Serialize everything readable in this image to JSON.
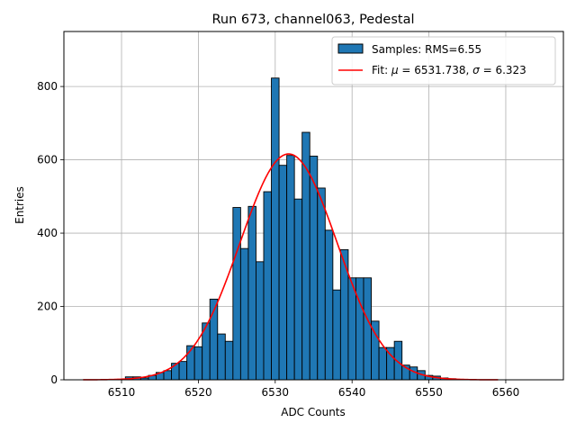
{
  "chart_data": {
    "type": "bar",
    "title": "Run 673, channel063, Pedestal",
    "xlabel": "ADC Counts",
    "ylabel": "Entries",
    "xlim": [
      6502.5,
      6567.5
    ],
    "ylim": [
      0,
      950
    ],
    "xticks": [
      6510,
      6520,
      6530,
      6540,
      6550,
      6560
    ],
    "yticks": [
      0,
      200,
      400,
      600,
      800
    ],
    "grid": true,
    "legend_position": "top-right",
    "bin_width": 1,
    "series": [
      {
        "name": "Samples: RMS=6.55",
        "kind": "histogram",
        "color": "#1f77b4",
        "edge_color": "#000000",
        "bins": [
          {
            "x": 6511,
            "y": 8
          },
          {
            "x": 6512,
            "y": 8
          },
          {
            "x": 6513,
            "y": 5
          },
          {
            "x": 6514,
            "y": 12
          },
          {
            "x": 6515,
            "y": 20
          },
          {
            "x": 6516,
            "y": 25
          },
          {
            "x": 6517,
            "y": 45
          },
          {
            "x": 6518,
            "y": 50
          },
          {
            "x": 6519,
            "y": 93
          },
          {
            "x": 6520,
            "y": 90
          },
          {
            "x": 6521,
            "y": 155
          },
          {
            "x": 6522,
            "y": 220
          },
          {
            "x": 6523,
            "y": 125
          },
          {
            "x": 6524,
            "y": 105
          },
          {
            "x": 6525,
            "y": 470
          },
          {
            "x": 6526,
            "y": 358
          },
          {
            "x": 6527,
            "y": 473
          },
          {
            "x": 6528,
            "y": 322
          },
          {
            "x": 6529,
            "y": 513
          },
          {
            "x": 6530,
            "y": 823
          },
          {
            "x": 6531,
            "y": 585
          },
          {
            "x": 6532,
            "y": 612
          },
          {
            "x": 6533,
            "y": 493
          },
          {
            "x": 6534,
            "y": 675
          },
          {
            "x": 6535,
            "y": 610
          },
          {
            "x": 6536,
            "y": 523
          },
          {
            "x": 6537,
            "y": 408
          },
          {
            "x": 6538,
            "y": 245
          },
          {
            "x": 6539,
            "y": 355
          },
          {
            "x": 6540,
            "y": 278
          },
          {
            "x": 6541,
            "y": 278
          },
          {
            "x": 6542,
            "y": 278
          },
          {
            "x": 6543,
            "y": 160
          },
          {
            "x": 6544,
            "y": 88
          },
          {
            "x": 6545,
            "y": 88
          },
          {
            "x": 6546,
            "y": 105
          },
          {
            "x": 6547,
            "y": 40
          },
          {
            "x": 6548,
            "y": 35
          },
          {
            "x": 6549,
            "y": 25
          },
          {
            "x": 6550,
            "y": 12
          },
          {
            "x": 6551,
            "y": 10
          },
          {
            "x": 6552,
            "y": 5
          },
          {
            "x": 6553,
            "y": 3
          }
        ]
      },
      {
        "name": "Fit: μ = 6531.738, σ = 6.323",
        "kind": "gaussian",
        "color": "#ff0000",
        "mu": 6531.738,
        "sigma": 6.323,
        "amplitude": 616,
        "x_range": [
          6505,
          6559
        ]
      }
    ],
    "legend": {
      "hist_label": "Samples: RMS=6.55",
      "fit_prefix": "Fit: ",
      "mu_symbol": "μ",
      "mu_text": " = 6531.738, ",
      "sigma_symbol": "σ",
      "sigma_text": " = 6.323"
    }
  }
}
